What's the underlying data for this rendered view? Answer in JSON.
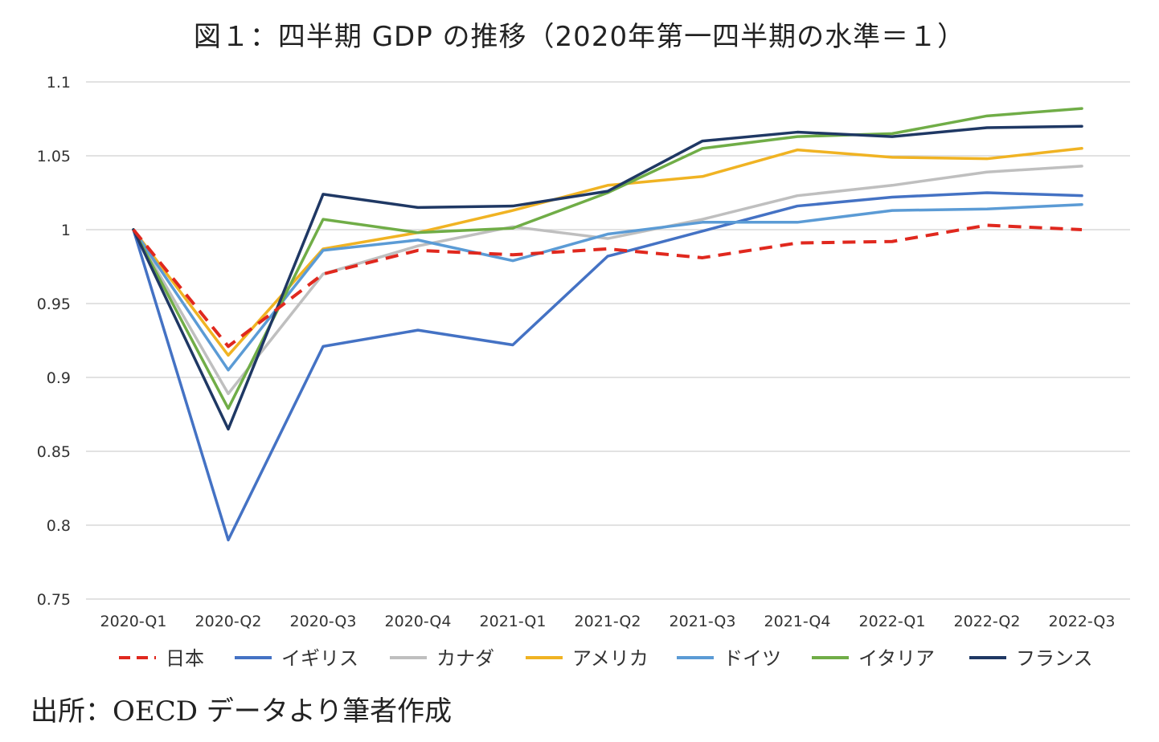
{
  "title": "図１：四半期 GDP の推移（2020年第一四半期の水準＝１）",
  "source": "出所：OECD データより筆者作成",
  "chart_data": {
    "type": "line",
    "categories": [
      "2020-Q1",
      "2020-Q2",
      "2020-Q3",
      "2020-Q4",
      "2021-Q1",
      "2021-Q2",
      "2021-Q3",
      "2021-Q4",
      "2022-Q1",
      "2022-Q2",
      "2022-Q3"
    ],
    "y_ticks": [
      "0.75",
      "0.8",
      "0.85",
      "0.9",
      "0.95",
      "1",
      "1.05",
      "1.1"
    ],
    "ylim": [
      0.75,
      1.1
    ],
    "grid": true,
    "legend_position": "bottom",
    "series": [
      {
        "name": "日本",
        "color": "#e0281e",
        "dashed": true,
        "values": [
          1.0,
          0.921,
          0.97,
          0.986,
          0.983,
          0.987,
          0.981,
          0.991,
          0.992,
          1.003,
          1.0
        ]
      },
      {
        "name": "イギリス",
        "color": "#4472c4",
        "dashed": false,
        "values": [
          1.0,
          0.79,
          0.921,
          0.932,
          0.922,
          0.982,
          0.999,
          1.016,
          1.022,
          1.025,
          1.023
        ]
      },
      {
        "name": "カナダ",
        "color": "#bfbfbf",
        "dashed": false,
        "values": [
          1.0,
          0.889,
          0.97,
          0.989,
          1.002,
          0.994,
          1.007,
          1.023,
          1.03,
          1.039,
          1.043
        ]
      },
      {
        "name": "アメリカ",
        "color": "#f0b323",
        "dashed": false,
        "values": [
          1.0,
          0.915,
          0.987,
          0.998,
          1.013,
          1.03,
          1.036,
          1.054,
          1.049,
          1.048,
          1.055
        ]
      },
      {
        "name": "ドイツ",
        "color": "#5b9bd5",
        "dashed": false,
        "values": [
          1.0,
          0.905,
          0.986,
          0.993,
          0.979,
          0.997,
          1.005,
          1.005,
          1.013,
          1.014,
          1.017
        ]
      },
      {
        "name": "イタリア",
        "color": "#70ad47",
        "dashed": false,
        "values": [
          1.0,
          0.879,
          1.007,
          0.998,
          1.001,
          1.025,
          1.055,
          1.063,
          1.065,
          1.077,
          1.082
        ]
      },
      {
        "name": "フランス",
        "color": "#1f3864",
        "dashed": false,
        "values": [
          1.0,
          0.865,
          1.024,
          1.015,
          1.016,
          1.026,
          1.06,
          1.066,
          1.063,
          1.069,
          1.07
        ]
      }
    ]
  }
}
